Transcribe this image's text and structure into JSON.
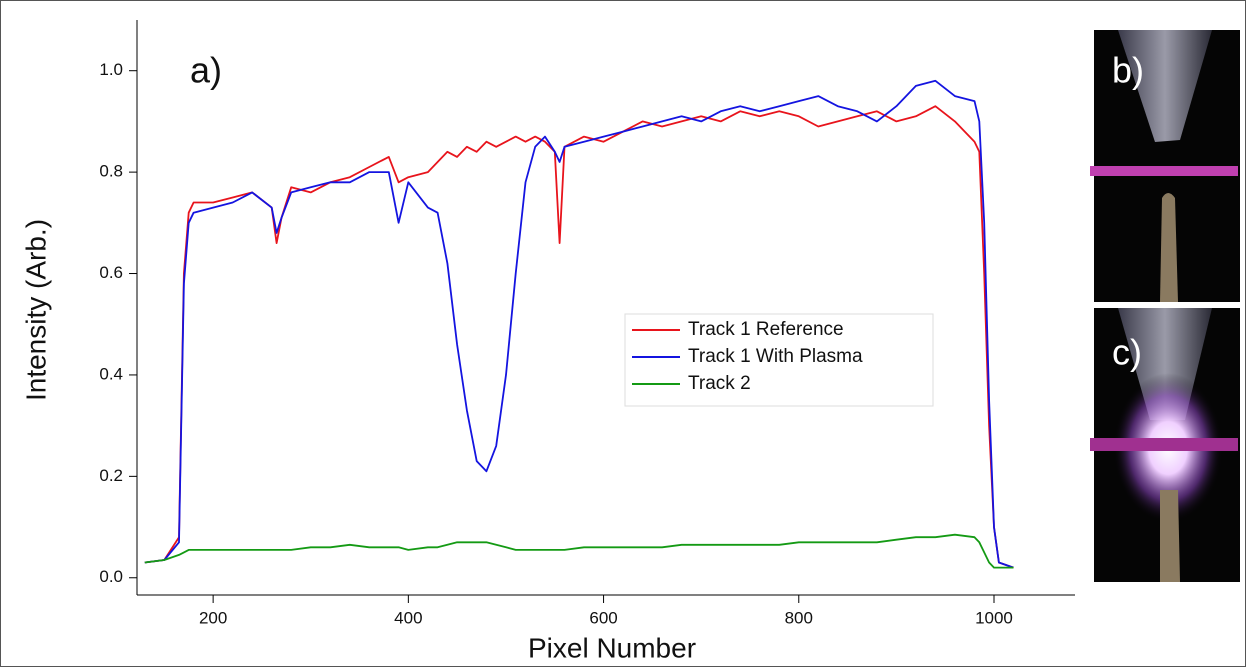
{
  "chart_data": {
    "type": "line",
    "x_label": "Pixel Number",
    "y_label": "Intensity (Arb.)",
    "annotations": [
      "a)",
      "b)",
      "c)"
    ],
    "xlim": [
      122,
      1083
    ],
    "ylim": [
      -0.034,
      1.1
    ],
    "xticks": [
      200,
      400,
      600,
      800,
      1000
    ],
    "yticks": [
      {
        "value": 0,
        "label": "0.0"
      },
      0.2,
      0.4,
      0.6,
      0.8,
      {
        "value": 1,
        "label": "1.0"
      }
    ],
    "x": [
      130,
      150,
      165,
      170,
      175,
      180,
      200,
      220,
      240,
      260,
      265,
      270,
      280,
      300,
      320,
      340,
      360,
      380,
      390,
      400,
      420,
      430,
      440,
      450,
      460,
      470,
      480,
      490,
      500,
      510,
      520,
      530,
      540,
      550,
      555,
      560,
      580,
      600,
      620,
      640,
      660,
      680,
      700,
      720,
      740,
      760,
      780,
      800,
      820,
      840,
      860,
      880,
      900,
      920,
      940,
      960,
      980,
      985,
      990,
      995,
      1000,
      1005,
      1020
    ],
    "series": [
      {
        "name": "Track 1 Reference",
        "color": "#e8141c",
        "values": [
          0.03,
          0.035,
          0.08,
          0.6,
          0.72,
          0.74,
          0.74,
          0.75,
          0.76,
          0.73,
          0.66,
          0.71,
          0.77,
          0.76,
          0.78,
          0.79,
          0.81,
          0.83,
          0.78,
          0.79,
          0.8,
          0.82,
          0.84,
          0.83,
          0.85,
          0.84,
          0.86,
          0.85,
          0.86,
          0.87,
          0.86,
          0.87,
          0.86,
          0.84,
          0.66,
          0.85,
          0.87,
          0.86,
          0.88,
          0.9,
          0.89,
          0.9,
          0.91,
          0.9,
          0.92,
          0.91,
          0.92,
          0.91,
          0.89,
          0.9,
          0.91,
          0.92,
          0.9,
          0.91,
          0.93,
          0.9,
          0.86,
          0.84,
          0.6,
          0.3,
          0.1,
          0.03,
          0.02
        ]
      },
      {
        "name": "Track 1 With Plasma",
        "color": "#1414e0",
        "values": [
          0.03,
          0.035,
          0.07,
          0.58,
          0.7,
          0.72,
          0.73,
          0.74,
          0.76,
          0.73,
          0.68,
          0.71,
          0.76,
          0.77,
          0.78,
          0.78,
          0.8,
          0.8,
          0.7,
          0.78,
          0.73,
          0.72,
          0.62,
          0.46,
          0.33,
          0.23,
          0.21,
          0.26,
          0.4,
          0.6,
          0.78,
          0.85,
          0.87,
          0.84,
          0.82,
          0.85,
          0.86,
          0.87,
          0.88,
          0.89,
          0.9,
          0.91,
          0.9,
          0.92,
          0.93,
          0.92,
          0.93,
          0.94,
          0.95,
          0.93,
          0.92,
          0.9,
          0.93,
          0.97,
          0.98,
          0.95,
          0.94,
          0.9,
          0.7,
          0.35,
          0.1,
          0.03,
          0.02
        ]
      },
      {
        "name": "Track 2",
        "color": "#149a14",
        "values": [
          0.03,
          0.035,
          0.045,
          0.05,
          0.055,
          0.055,
          0.055,
          0.055,
          0.055,
          0.055,
          0.055,
          0.055,
          0.055,
          0.06,
          0.06,
          0.065,
          0.06,
          0.06,
          0.06,
          0.055,
          0.06,
          0.06,
          0.065,
          0.07,
          0.07,
          0.07,
          0.07,
          0.065,
          0.06,
          0.055,
          0.055,
          0.055,
          0.055,
          0.055,
          0.055,
          0.055,
          0.06,
          0.06,
          0.06,
          0.06,
          0.06,
          0.065,
          0.065,
          0.065,
          0.065,
          0.065,
          0.065,
          0.07,
          0.07,
          0.07,
          0.07,
          0.07,
          0.075,
          0.08,
          0.08,
          0.085,
          0.08,
          0.07,
          0.05,
          0.03,
          0.02,
          0.02,
          0.02
        ]
      }
    ]
  }
}
